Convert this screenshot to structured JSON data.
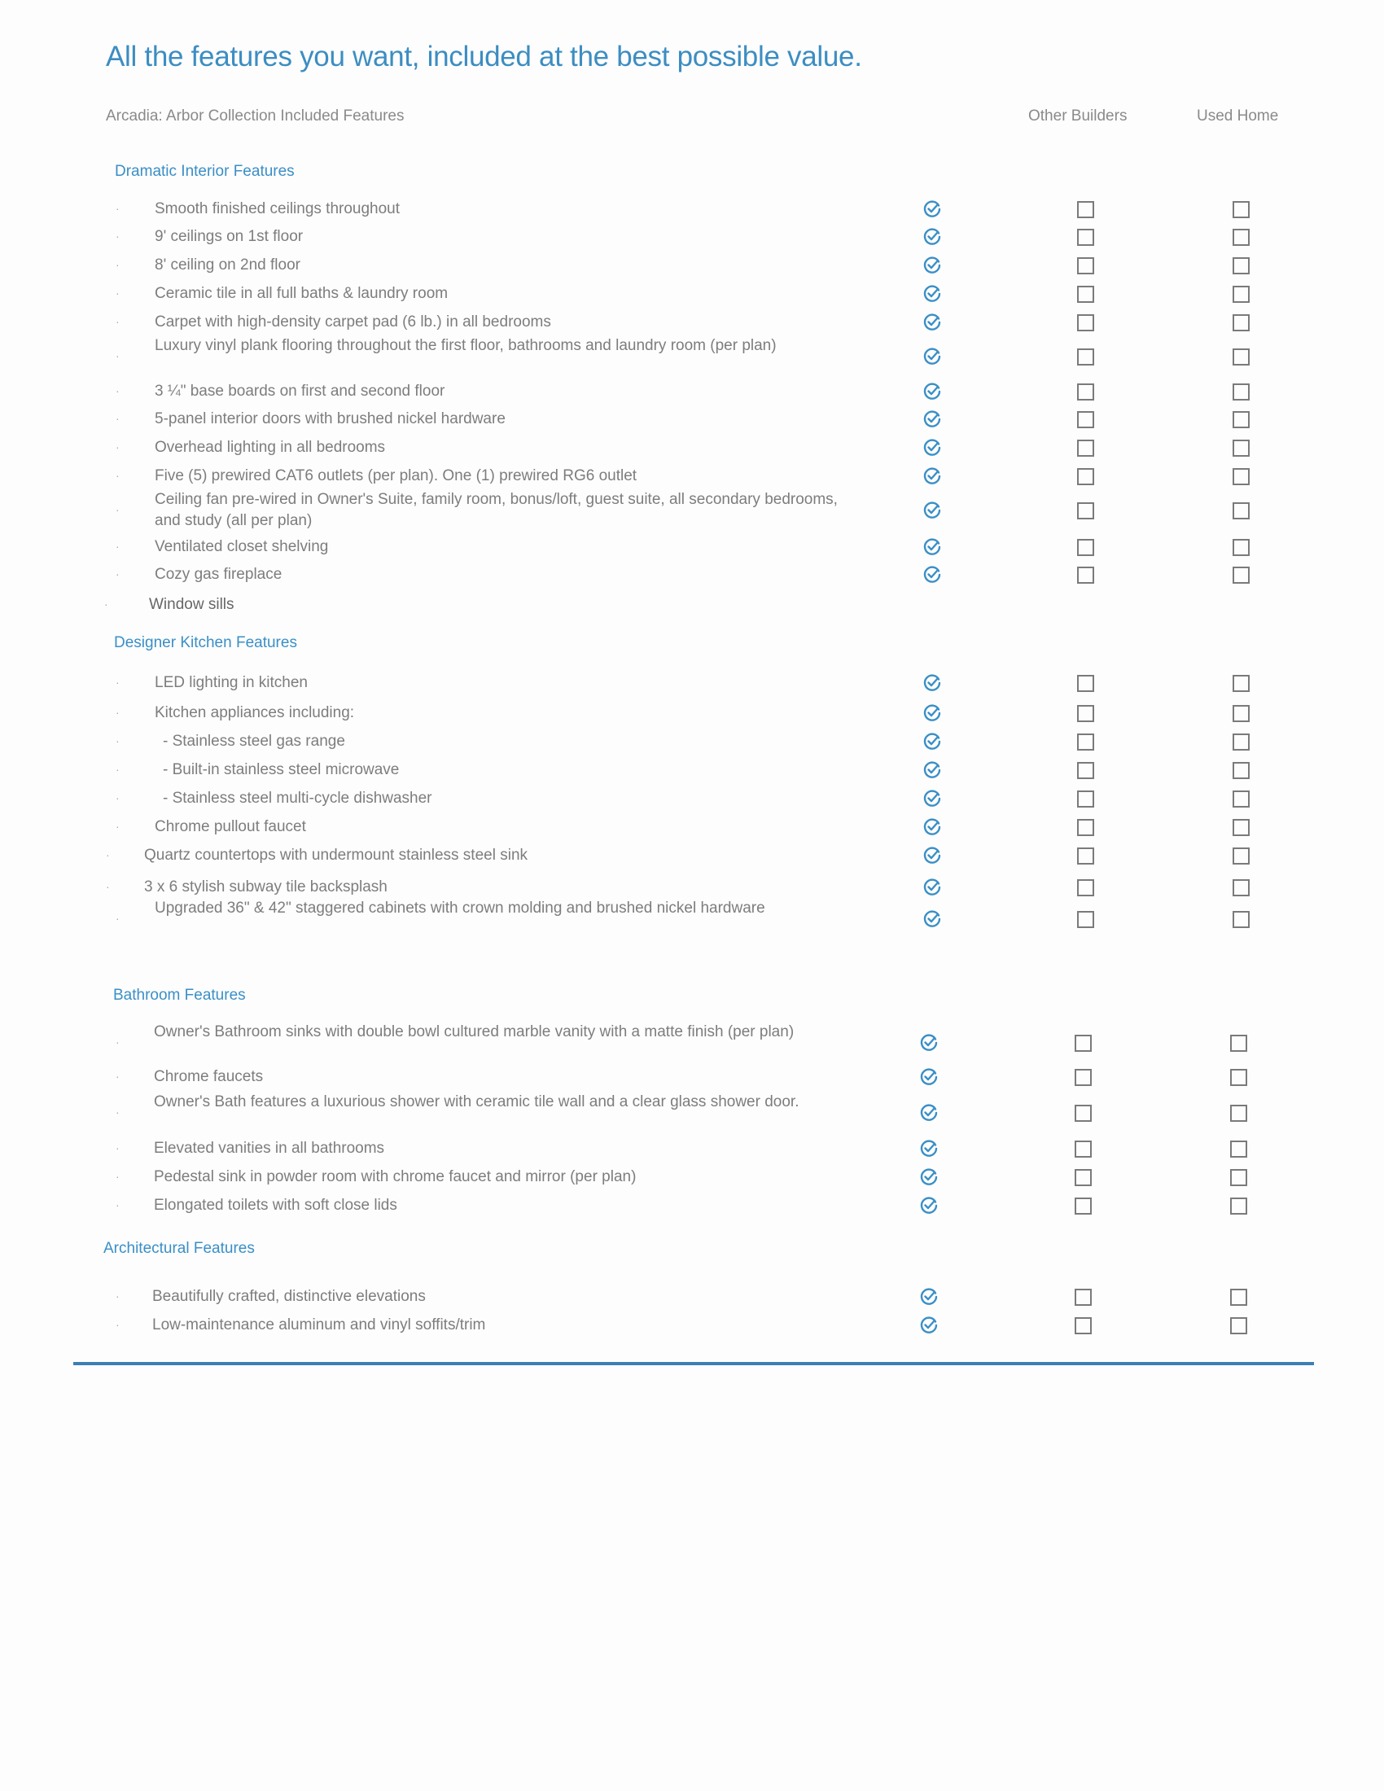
{
  "title": "All the features you want, included at the best possible value.",
  "header": {
    "collection": "Arcadia: Arbor Collection Included Features",
    "col_other": "Other Builders",
    "col_used": "Used Home"
  },
  "colors": {
    "accent": "#3a8fc6",
    "rule": "#3a7fb4",
    "text": "#7d7d7d"
  },
  "icons": {
    "included": "circle-check-icon",
    "not_included": "empty-checkbox-icon"
  },
  "sections": [
    {
      "title": "Dramatic Interior Features",
      "items": [
        {
          "text": "Smooth finished ceilings throughout",
          "included": true,
          "other": false,
          "used": false
        },
        {
          "text": "9' ceilings on 1st floor",
          "included": true,
          "other": false,
          "used": false
        },
        {
          "text": "8' ceiling on 2nd floor",
          "included": true,
          "other": false,
          "used": false
        },
        {
          "text": "Ceramic tile in all full baths & laundry room",
          "included": true,
          "other": false,
          "used": false
        },
        {
          "text": "Carpet with high-density carpet pad (6 lb.) in all bedrooms",
          "included": true,
          "other": false,
          "used": false
        },
        {
          "text": "Luxury vinyl plank flooring throughout the first floor, bathrooms and laundry room (per plan)",
          "included": true,
          "other": false,
          "used": false
        },
        {
          "text": "3 ¼\" base boards on first and second floor",
          "included": true,
          "other": false,
          "used": false
        },
        {
          "text": "5-panel interior doors with brushed nickel hardware",
          "included": true,
          "other": false,
          "used": false
        },
        {
          "text": "Overhead lighting in all bedrooms",
          "included": true,
          "other": false,
          "used": false
        },
        {
          "text": "Five (5) prewired CAT6 outlets (per plan). One (1) prewired RG6 outlet",
          "included": true,
          "other": false,
          "used": false
        },
        {
          "text": "Ceiling fan pre-wired in Owner's Suite, family room, bonus/loft, guest suite, all secondary bedrooms, and study (all per plan)",
          "included": true,
          "other": false,
          "used": false
        },
        {
          "text": "Ventilated closet shelving",
          "included": true,
          "other": false,
          "used": false
        },
        {
          "text": "Cozy gas fireplace",
          "included": true,
          "other": false,
          "used": false
        },
        {
          "text": "Window sills",
          "included": null,
          "other": null,
          "used": null
        }
      ]
    },
    {
      "title": "Designer Kitchen Features",
      "items": [
        {
          "text": "LED lighting in kitchen",
          "included": true,
          "other": false,
          "used": false
        },
        {
          "text": "Kitchen appliances including:",
          "included": true,
          "other": false,
          "used": false
        },
        {
          "text": "- Stainless steel gas range",
          "included": true,
          "other": false,
          "used": false
        },
        {
          "text": "- Built-in stainless steel microwave",
          "included": true,
          "other": false,
          "used": false
        },
        {
          "text": "- Stainless steel multi-cycle dishwasher",
          "included": true,
          "other": false,
          "used": false
        },
        {
          "text": "Chrome pullout faucet",
          "included": true,
          "other": false,
          "used": false
        },
        {
          "text": "Quartz countertops with undermount stainless steel sink",
          "included": true,
          "other": false,
          "used": false
        },
        {
          "text": "3 x 6  stylish subway tile backsplash",
          "included": true,
          "other": false,
          "used": false
        },
        {
          "text": "Upgraded 36\" & 42\" staggered cabinets with crown molding and brushed nickel hardware",
          "included": true,
          "other": false,
          "used": false
        }
      ]
    },
    {
      "title": "Bathroom  Features",
      "items": [
        {
          "text": "Owner's Bathroom sinks with double bowl cultured marble vanity with a matte finish (per plan)",
          "included": true,
          "other": false,
          "used": false
        },
        {
          "text": "Chrome faucets",
          "included": true,
          "other": false,
          "used": false
        },
        {
          "text": "Owner's Bath features a luxurious shower with ceramic tile wall and a clear glass shower door.",
          "included": true,
          "other": false,
          "used": false
        },
        {
          "text": "Elevated vanities in all bathrooms",
          "included": true,
          "other": false,
          "used": false
        },
        {
          "text": "Pedestal sink in powder room with chrome faucet and mirror (per plan)",
          "included": true,
          "other": false,
          "used": false
        },
        {
          "text": "Elongated toilets with soft close lids",
          "included": true,
          "other": false,
          "used": false
        }
      ]
    },
    {
      "title": "Architectural Features",
      "items": [
        {
          "text": "Beautifully crafted, distinctive elevations",
          "included": true,
          "other": false,
          "used": false
        },
        {
          "text": "Low-maintenance aluminum and vinyl soffits/trim",
          "included": true,
          "other": false,
          "used": false
        }
      ]
    }
  ]
}
